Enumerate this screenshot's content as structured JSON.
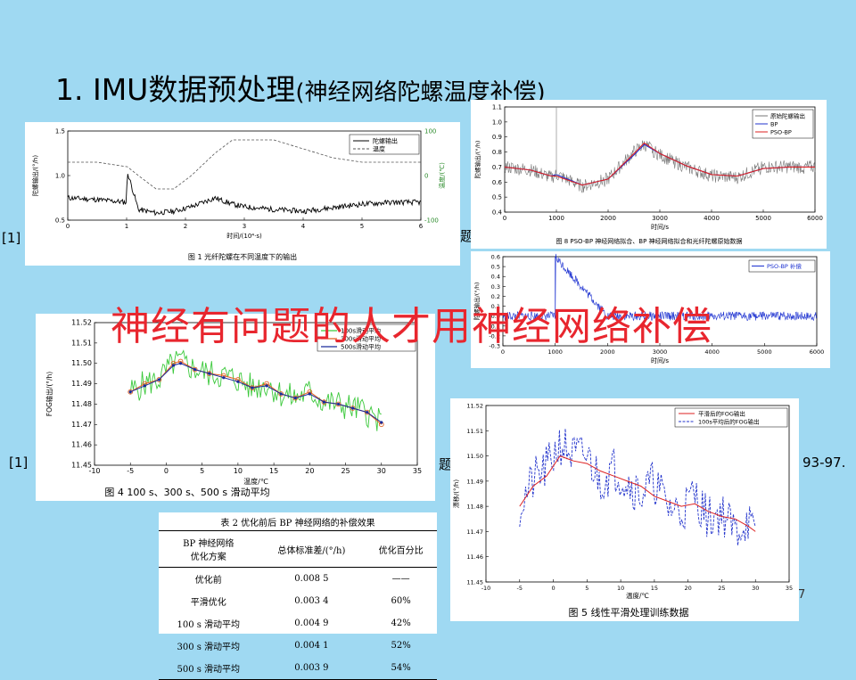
{
  "slide": {
    "title_main": "1. IMU数据预处理",
    "title_paren": "(神经网络陀螺温度补偿)",
    "overlay": "神经有问题的人才用神经网络补偿",
    "refs": {
      "left_top": "[1]",
      "left_bottom": "[1]",
      "mid_top": "题",
      "mid_bottom": "题",
      "right_bottom": "93-97.",
      "page_mark": "7"
    }
  },
  "figures": {
    "fig1": {
      "caption": "图 1   光纤陀螺在不同温度下的输出",
      "xlabel": "时间/(10⁴·s)",
      "ylabel_left": "陀螺输出/(°/h)",
      "ylabel_right": "温度/(℃)",
      "legend": [
        "陀螺输出",
        "温度"
      ]
    },
    "fig8": {
      "caption": "图 8   PSO-BP 神经网络拟合、BP 神经网络拟合和光纤陀螺原始数据",
      "xlabel": "时间/s",
      "ylabel": "陀螺输出/(°/h)",
      "legend": [
        "原始陀螺输出",
        "BP",
        "PSO-BP"
      ]
    },
    "fig9": {
      "xlabel": "时间/s",
      "ylabel": "陀螺输出/(°/h)",
      "legend": [
        "PSO-BP 补偿"
      ]
    },
    "fig4": {
      "caption": "图 4   100 s、300 s、500 s 滑动平均",
      "xlabel": "温度/℃",
      "ylabel": "FOG输出/(°/h)",
      "legend": [
        "100s滑动平均",
        "300s滑动平均",
        "500s滑动平均"
      ]
    },
    "fig5": {
      "caption": "图 5   线性平滑处理训练数据",
      "xlabel": "温度/℃",
      "ylabel": "漂移/(°/h)",
      "legend": [
        "平滑后的FOG输出",
        "100s平均后的FOG输出"
      ]
    }
  },
  "table2": {
    "caption": "表 2   优化前后 BP 神经网络的补偿效果",
    "headers": [
      "BP 神经网络\n优化方案",
      "总体标准差/(°/h)",
      "优化百分比"
    ],
    "rows": [
      [
        "优化前",
        "0.008 5",
        "——"
      ],
      [
        "平滑优化",
        "0.003 4",
        "60%"
      ],
      [
        "100 s 滑动平均",
        "0.004 9",
        "42%"
      ],
      [
        "300 s 滑动平均",
        "0.004 1",
        "52%"
      ],
      [
        "500 s 滑动平均",
        "0.003 9",
        "54%"
      ]
    ]
  },
  "chart_data": [
    {
      "type": "line",
      "x": [
        0,
        0.5,
        1,
        1.01,
        1.2,
        1.5,
        1.8,
        2.1,
        2.5,
        2.8,
        3.0,
        3.5,
        4.0,
        4.5,
        5.0,
        5.5,
        6.0
      ],
      "series": [
        {
          "name": "陀螺输出",
          "values": [
            0.75,
            0.73,
            0.7,
            1.05,
            0.62,
            0.58,
            0.6,
            0.65,
            0.75,
            0.68,
            0.65,
            0.62,
            0.6,
            0.64,
            0.68,
            0.7,
            0.7
          ]
        },
        {
          "name": "温度",
          "values": [
            30,
            30,
            20,
            20,
            0,
            -30,
            -30,
            0,
            50,
            80,
            80,
            80,
            60,
            40,
            30,
            30,
            30
          ]
        }
      ],
      "xlim": [
        0,
        6
      ],
      "ylim": [
        0.5,
        1.5
      ],
      "y2lim": [
        -100,
        100
      ],
      "xticks": [
        0,
        1,
        2,
        3,
        4,
        5,
        6
      ],
      "yticks": [
        0.5,
        1.0,
        1.5
      ],
      "y2ticks": [
        -100,
        0,
        100
      ],
      "xlabel": "时间/(10⁴·s)",
      "ylabel": "陀螺输出/(°/h)",
      "y2label": "温度/(℃)",
      "legend_position": "top-right"
    },
    {
      "type": "line",
      "x": [
        0,
        500,
        900,
        1000,
        1500,
        2000,
        2500,
        2700,
        3000,
        3500,
        4000,
        4500,
        5000,
        5500,
        6000
      ],
      "series": [
        {
          "name": "原始陀螺输出",
          "values": [
            0.7,
            0.68,
            0.63,
            0.65,
            0.57,
            0.62,
            0.8,
            0.85,
            0.78,
            0.7,
            0.64,
            0.63,
            0.7,
            0.7,
            0.7
          ]
        },
        {
          "name": "BP",
          "values": [
            0.7,
            0.68,
            0.64,
            0.65,
            0.58,
            0.62,
            0.78,
            0.85,
            0.79,
            0.71,
            0.65,
            0.64,
            0.69,
            0.7,
            0.7
          ]
        },
        {
          "name": "PSO-BP",
          "values": [
            0.7,
            0.68,
            0.64,
            0.64,
            0.58,
            0.62,
            0.79,
            0.86,
            0.79,
            0.71,
            0.65,
            0.64,
            0.69,
            0.7,
            0.7
          ]
        }
      ],
      "xlim": [
        0,
        6000
      ],
      "ylim": [
        0.4,
        1.1
      ],
      "xticks": [
        0,
        1000,
        2000,
        3000,
        4000,
        5000,
        6000
      ],
      "yticks": [
        0.4,
        0.5,
        0.6,
        0.7,
        0.8,
        0.9,
        1.0,
        1.1
      ],
      "xlabel": "时间/s",
      "ylabel": "陀螺输出/(°/h)",
      "legend_position": "top-right"
    },
    {
      "type": "line",
      "x": [
        0,
        1000,
        1001,
        2000,
        3000,
        4000,
        5000,
        6000
      ],
      "series": [
        {
          "name": "PSO-BP 补偿",
          "values": [
            0.0,
            0.0,
            0.6,
            0.0,
            0.0,
            0.0,
            0.0,
            0.0
          ]
        }
      ],
      "xlim": [
        0,
        6000
      ],
      "ylim": [
        -0.3,
        0.6
      ],
      "xticks": [
        0,
        1000,
        2000,
        3000,
        4000,
        5000,
        6000
      ],
      "yticks": [
        -0.3,
        -0.2,
        -0.1,
        0,
        0.1,
        0.2,
        0.3,
        0.4,
        0.5,
        0.6
      ],
      "xlabel": "时间/s",
      "ylabel": "陀螺输出/(°/h)",
      "legend_position": "top-right"
    },
    {
      "type": "line",
      "x": [
        -5,
        -3,
        -1,
        1,
        2,
        4,
        6,
        8,
        10,
        12,
        14,
        16,
        18,
        20,
        22,
        24,
        26,
        28,
        30
      ],
      "series": [
        {
          "name": "100s滑动平均",
          "values": [
            11.486,
            11.49,
            11.492,
            11.5,
            11.501,
            11.497,
            11.495,
            11.494,
            11.492,
            11.488,
            11.49,
            11.485,
            11.483,
            11.486,
            11.481,
            11.48,
            11.478,
            11.476,
            11.47
          ]
        },
        {
          "name": "300s滑动平均",
          "values": [
            11.486,
            11.49,
            11.492,
            11.5,
            11.501,
            11.497,
            11.495,
            11.494,
            11.492,
            11.488,
            11.49,
            11.485,
            11.483,
            11.486,
            11.481,
            11.48,
            11.478,
            11.476,
            11.47
          ]
        },
        {
          "name": "500s滑动平均",
          "values": [
            11.486,
            11.489,
            11.492,
            11.499,
            11.5,
            11.497,
            11.495,
            11.493,
            11.491,
            11.488,
            11.489,
            11.485,
            11.483,
            11.485,
            11.481,
            11.48,
            11.478,
            11.476,
            11.471
          ]
        }
      ],
      "xlim": [
        -10,
        35
      ],
      "ylim": [
        11.45,
        11.52
      ],
      "xticks": [
        -10,
        -5,
        0,
        5,
        10,
        15,
        20,
        25,
        30,
        35
      ],
      "yticks": [
        11.45,
        11.46,
        11.47,
        11.48,
        11.49,
        11.5,
        11.51,
        11.52
      ],
      "xlabel": "温度/℃",
      "ylabel": "FOG输出/(°/h)",
      "legend_position": "top-right"
    },
    {
      "type": "line",
      "x": [
        -5,
        -3,
        -1,
        1,
        3,
        5,
        7,
        9,
        11,
        13,
        15,
        17,
        19,
        21,
        23,
        25,
        27,
        29,
        30
      ],
      "series": [
        {
          "name": "平滑后的FOG输出",
          "values": [
            11.48,
            11.488,
            11.492,
            11.5,
            11.498,
            11.497,
            11.494,
            11.492,
            11.49,
            11.488,
            11.484,
            11.482,
            11.48,
            11.481,
            11.478,
            11.476,
            11.475,
            11.472,
            11.47
          ]
        },
        {
          "name": "100s平均后的FOG输出",
          "values": [
            11.48,
            11.49,
            11.495,
            11.505,
            11.5,
            11.5,
            11.49,
            11.495,
            11.49,
            11.485,
            11.49,
            11.48,
            11.478,
            11.485,
            11.475,
            11.478,
            11.47,
            11.475,
            11.465
          ]
        }
      ],
      "xlim": [
        -10,
        35
      ],
      "ylim": [
        11.45,
        11.52
      ],
      "xticks": [
        -10,
        -5,
        0,
        5,
        10,
        15,
        20,
        25,
        30,
        35
      ],
      "yticks": [
        11.45,
        11.46,
        11.47,
        11.48,
        11.49,
        11.5,
        11.51,
        11.52
      ],
      "xlabel": "温度/℃",
      "ylabel": "漂移/(°/h)",
      "legend_position": "top-right"
    }
  ]
}
